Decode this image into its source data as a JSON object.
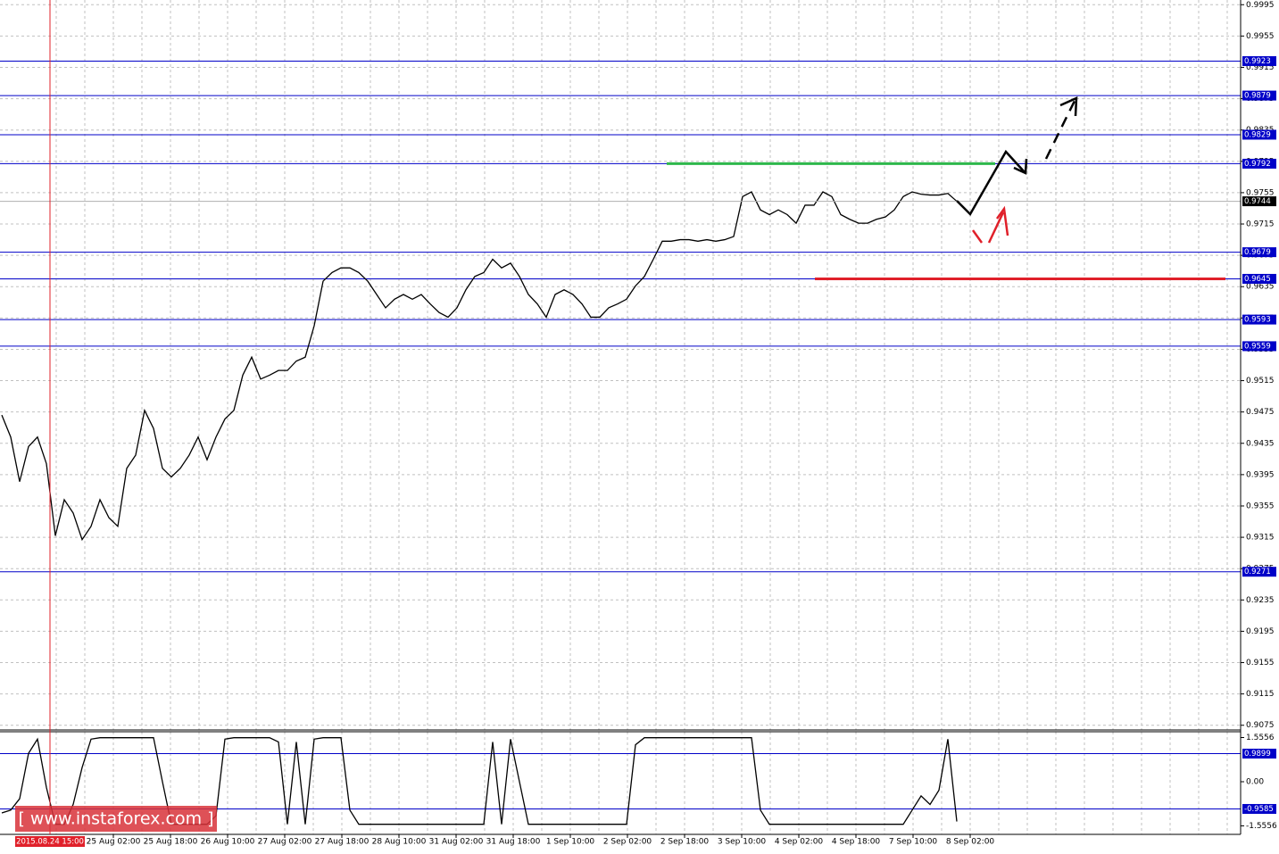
{
  "chart_data": [
    {
      "type": "line",
      "color": "#000000",
      "values": [
        0.9471,
        0.9443,
        0.9386,
        0.9431,
        0.9443,
        0.9409,
        0.9317,
        0.9363,
        0.9346,
        0.9312,
        0.9329,
        0.9363,
        0.934,
        0.9329,
        0.9403,
        0.942,
        0.9477,
        0.9454,
        0.9403,
        0.9392,
        0.9403,
        0.942,
        0.9443,
        0.9414,
        0.9443,
        0.9466,
        0.9477,
        0.9522,
        0.9545,
        0.9517,
        0.9522,
        0.9528,
        0.9528,
        0.954,
        0.9545,
        0.9585,
        0.9642,
        0.9653,
        0.9659,
        0.9659,
        0.9653,
        0.9642,
        0.9625,
        0.9608,
        0.9619,
        0.9625,
        0.9619,
        0.9625,
        0.9613,
        0.9602,
        0.9596,
        0.9608,
        0.9631,
        0.9648,
        0.9653,
        0.967,
        0.9659,
        0.9665,
        0.9648,
        0.9625,
        0.9613,
        0.9596,
        0.9625,
        0.9631,
        0.9625,
        0.9613,
        0.9596,
        0.9596,
        0.9608,
        0.9613,
        0.9619,
        0.9636,
        0.9648,
        0.967,
        0.9693,
        0.9693,
        0.9695,
        0.9695,
        0.9693,
        0.9695,
        0.9693,
        0.9695,
        0.9699,
        0.975,
        0.9756,
        0.9733,
        0.9727,
        0.9733,
        0.9727,
        0.9716,
        0.9739,
        0.9739,
        0.9756,
        0.975,
        0.9727,
        0.9721,
        0.9716,
        0.9716,
        0.9721,
        0.9724,
        0.9733,
        0.975,
        0.9756,
        0.9753,
        0.9752,
        0.9752,
        0.9754,
        0.9744
      ],
      "ylim": [
        0.9069,
        1.0001
      ],
      "yticks": [
        0.9995,
        0.9955,
        0.9915,
        0.9875,
        0.9835,
        0.9795,
        0.9755,
        0.9715,
        0.9675,
        0.9635,
        0.9595,
        0.9555,
        0.9515,
        0.9475,
        0.9435,
        0.9395,
        0.9355,
        0.9315,
        0.9275,
        0.9235,
        0.9195,
        0.9155,
        0.9115,
        0.9075
      ],
      "levels": [
        0.9923,
        0.9879,
        0.9829,
        0.9792,
        0.9679,
        0.9645,
        0.9593,
        0.9559,
        0.9271
      ],
      "level_color": "#0000c8",
      "current_price": 0.9744,
      "drawn_lines": [
        {
          "value": 0.9792,
          "color": "#2eb84b"
        },
        {
          "value": 0.9645,
          "color": "#e0202a"
        }
      ],
      "grid": true,
      "time_labels": [
        "25 Aug 02:00",
        "25 Aug 18:00",
        "26 Aug 10:00",
        "27 Aug 02:00",
        "27 Aug 18:00",
        "28 Aug 10:00",
        "31 Aug 02:00",
        "31 Aug 18:00",
        "1 Sep 10:00",
        "2 Sep 02:00",
        "2 Sep 18:00",
        "3 Sep 10:00",
        "4 Sep 02:00",
        "4 Sep 18:00",
        "7 Sep 10:00",
        "8 Sep 02:00"
      ],
      "marker_time": "2015.08.24 15:00",
      "watermark": "[ www.instaforex.com ]"
    },
    {
      "type": "line",
      "color": "#000000",
      "values": [
        -1.1,
        -1.0,
        -0.6,
        1.0,
        1.5,
        -0.2,
        -1.5,
        -1.5,
        -0.8,
        0.5,
        1.5,
        1.55,
        1.55,
        1.55,
        1.55,
        1.55,
        1.55,
        1.55,
        0.0,
        -1.5,
        -1.5,
        -1.5,
        -1.5,
        -1.5,
        -1.2,
        1.5,
        1.55,
        1.55,
        1.55,
        1.55,
        1.55,
        1.4,
        -1.5,
        1.4,
        -1.5,
        1.5,
        1.55,
        1.55,
        1.55,
        -1.0,
        -1.5,
        -1.5,
        -1.5,
        -1.5,
        -1.5,
        -1.5,
        -1.5,
        -1.5,
        -1.5,
        -1.5,
        -1.5,
        -1.5,
        -1.5,
        -1.5,
        -1.5,
        1.4,
        -1.5,
        1.5,
        0.0,
        -1.5,
        -1.5,
        -1.5,
        -1.5,
        -1.5,
        -1.5,
        -1.5,
        -1.5,
        -1.5,
        -1.5,
        -1.5,
        -1.5,
        1.3,
        1.55,
        1.55,
        1.55,
        1.55,
        1.55,
        1.55,
        1.55,
        1.55,
        1.55,
        1.55,
        1.55,
        1.55,
        1.55,
        -1.0,
        -1.5,
        -1.5,
        -1.5,
        -1.5,
        -1.5,
        -1.5,
        -1.5,
        -1.5,
        -1.5,
        -1.5,
        -1.5,
        -1.5,
        -1.5,
        -1.5,
        -1.5,
        -1.5,
        -1.0,
        -0.5,
        -0.8,
        -0.3,
        1.5,
        -1.4
      ],
      "ylim": [
        -1.855,
        1.76
      ],
      "yticks": [
        1.5556,
        {
          "value": 0,
          "label": "0.00"
        },
        -1.5556
      ],
      "levels": [
        0.9899,
        -0.9585
      ],
      "level_color": "#0000c8"
    }
  ]
}
